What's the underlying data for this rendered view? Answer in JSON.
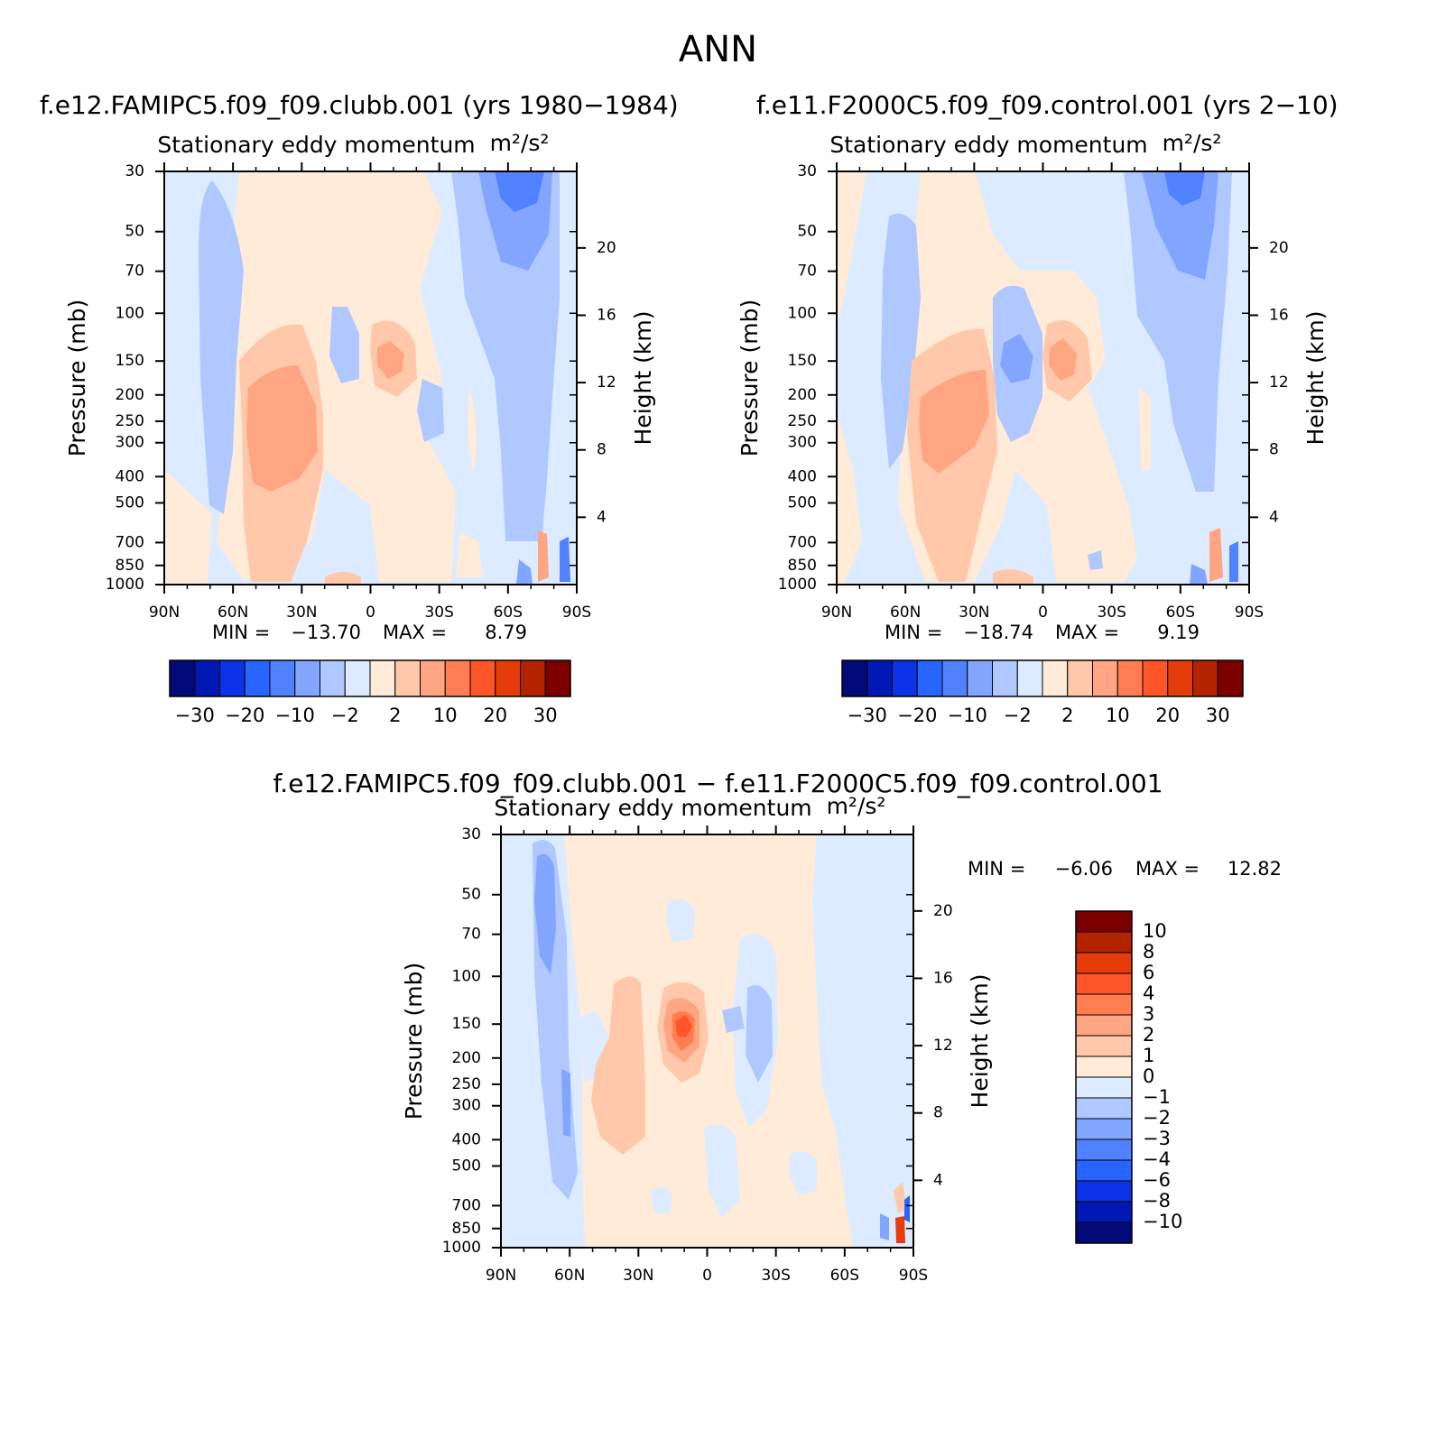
{
  "figure": {
    "title": "ANN",
    "left_title": "f.e12.FAMIPC5.f09_f09.clubb.001 (yrs 1980−1984)",
    "right_title": "f.e11.F2000C5.f09_f09.control.001 (yrs 2−10)",
    "diff_title": "f.e12.FAMIPC5.f09_f09.clubb.001 − f.e11.F2000C5.f09_f09.control.001"
  },
  "panels": {
    "left": {
      "subtitle": "Stationary eddy momentum",
      "units": "m²/s²",
      "min_label": "MIN =",
      "min_value": "−13.70",
      "max_label": "MAX =",
      "max_value": "8.79"
    },
    "right": {
      "subtitle": "Stationary eddy momentum",
      "units": "m²/s²",
      "min_label": "MIN =",
      "min_value": "−18.74",
      "max_label": "MAX =",
      "max_value": "9.19"
    },
    "diff": {
      "subtitle": "Stationary eddy momentum",
      "units": "m²/s²",
      "min_label": "MIN =",
      "min_value": "−6.06",
      "max_label": "MAX =",
      "max_value": "12.82"
    }
  },
  "axes": {
    "ylabel": "Pressure (mb)",
    "ylabel_right": "Height (km)",
    "y_ticks": [
      "30",
      "50",
      "70",
      "100",
      "150",
      "200",
      "250",
      "300",
      "400",
      "500",
      "700",
      "850",
      "1000"
    ],
    "y_tick_values": [
      30,
      50,
      70,
      100,
      150,
      200,
      250,
      300,
      400,
      500,
      700,
      850,
      1000
    ],
    "height_ticks": [
      "20",
      "16",
      "12",
      "8",
      "4"
    ],
    "height_tick_values": [
      20,
      16,
      12,
      8,
      4
    ],
    "x_ticks": [
      "90N",
      "60N",
      "30N",
      "0",
      "30S",
      "60S",
      "90S"
    ],
    "x_tick_values": [
      90,
      60,
      30,
      0,
      -30,
      -60,
      -90
    ]
  },
  "colorbars": {
    "case": {
      "colors": [
        "#000a78",
        "#0019b4",
        "#0a32e6",
        "#2864ff",
        "#5082ff",
        "#82a5ff",
        "#afc8ff",
        "#dcebff",
        "#ffebd7",
        "#ffc8aa",
        "#ffa582",
        "#ff7d50",
        "#ff5528",
        "#e63c0a",
        "#b42300",
        "#7d0000"
      ],
      "labels": [
        "−30",
        "−20",
        "−10",
        "−2",
        "2",
        "10",
        "20",
        "30"
      ]
    },
    "diff": {
      "colors": [
        "#000a78",
        "#0019b4",
        "#0a32e6",
        "#2864ff",
        "#5082ff",
        "#82a5ff",
        "#afc8ff",
        "#dcebff",
        "#ffebd7",
        "#ffc8aa",
        "#ffa582",
        "#ff7d50",
        "#ff5528",
        "#e63c0a",
        "#b42300",
        "#7d0000"
      ],
      "labels": [
        "10",
        "8",
        "6",
        "4",
        "3",
        "2",
        "1",
        "0",
        "−1",
        "−2",
        "−3",
        "−4",
        "−6",
        "−8",
        "−10"
      ]
    }
  },
  "chart_data": [
    {
      "type": "heatmap",
      "title": "f.e12.FAMIPC5.f09_f09.clubb.001 (yrs 1980−1984)",
      "subtitle": "Stationary eddy momentum m²/s²",
      "xlabel": "",
      "ylabel": "Pressure (mb)",
      "ylabel_right": "Height (km)",
      "xlim": [
        90,
        -90
      ],
      "ylim": [
        1000,
        30
      ],
      "yscale": "log",
      "min": -13.7,
      "max": 8.79,
      "features": [
        {
          "lat": 68,
          "p": 150,
          "value": -3
        },
        {
          "lat": 40,
          "p": 300,
          "value": 5
        },
        {
          "lat": 10,
          "p": 150,
          "value": -3
        },
        {
          "lat": -8,
          "p": 150,
          "value": 5
        },
        {
          "lat": -62,
          "p": 35,
          "value": -10
        },
        {
          "lat": -60,
          "p": 60,
          "value": -3
        }
      ]
    },
    {
      "type": "heatmap",
      "title": "f.e11.F2000C5.f09_f09.control.001 (yrs 2−10)",
      "subtitle": "Stationary eddy momentum m²/s²",
      "xlabel": "",
      "ylabel": "Pressure (mb)",
      "ylabel_right": "Height (km)",
      "xlim": [
        90,
        -90
      ],
      "ylim": [
        1000,
        30
      ],
      "yscale": "log",
      "min": -18.74,
      "max": 9.19,
      "features": [
        {
          "lat": 68,
          "p": 150,
          "value": -3
        },
        {
          "lat": 42,
          "p": 300,
          "value": 5
        },
        {
          "lat": 10,
          "p": 150,
          "value": -5
        },
        {
          "lat": -8,
          "p": 150,
          "value": 5
        },
        {
          "lat": -62,
          "p": 35,
          "value": -10
        },
        {
          "lat": -62,
          "p": 60,
          "value": -3
        }
      ]
    },
    {
      "type": "heatmap",
      "title": "f.e12.FAMIPC5.f09_f09.clubb.001 − f.e11.F2000C5.f09_f09.control.001",
      "subtitle": "Stationary eddy momentum m²/s²",
      "xlabel": "",
      "ylabel": "Pressure (mb)",
      "ylabel_right": "Height (km)",
      "xlim": [
        90,
        -90
      ],
      "ylim": [
        1000,
        30
      ],
      "yscale": "log",
      "min": -6.06,
      "max": 12.82,
      "features": [
        {
          "lat": 76,
          "p": 60,
          "value": -2
        },
        {
          "lat": 62,
          "p": 300,
          "value": -2
        },
        {
          "lat": 12,
          "p": 150,
          "value": 4
        },
        {
          "lat": -18,
          "p": 150,
          "value": -1
        },
        {
          "lat": 35,
          "p": 300,
          "value": 1
        }
      ]
    }
  ]
}
